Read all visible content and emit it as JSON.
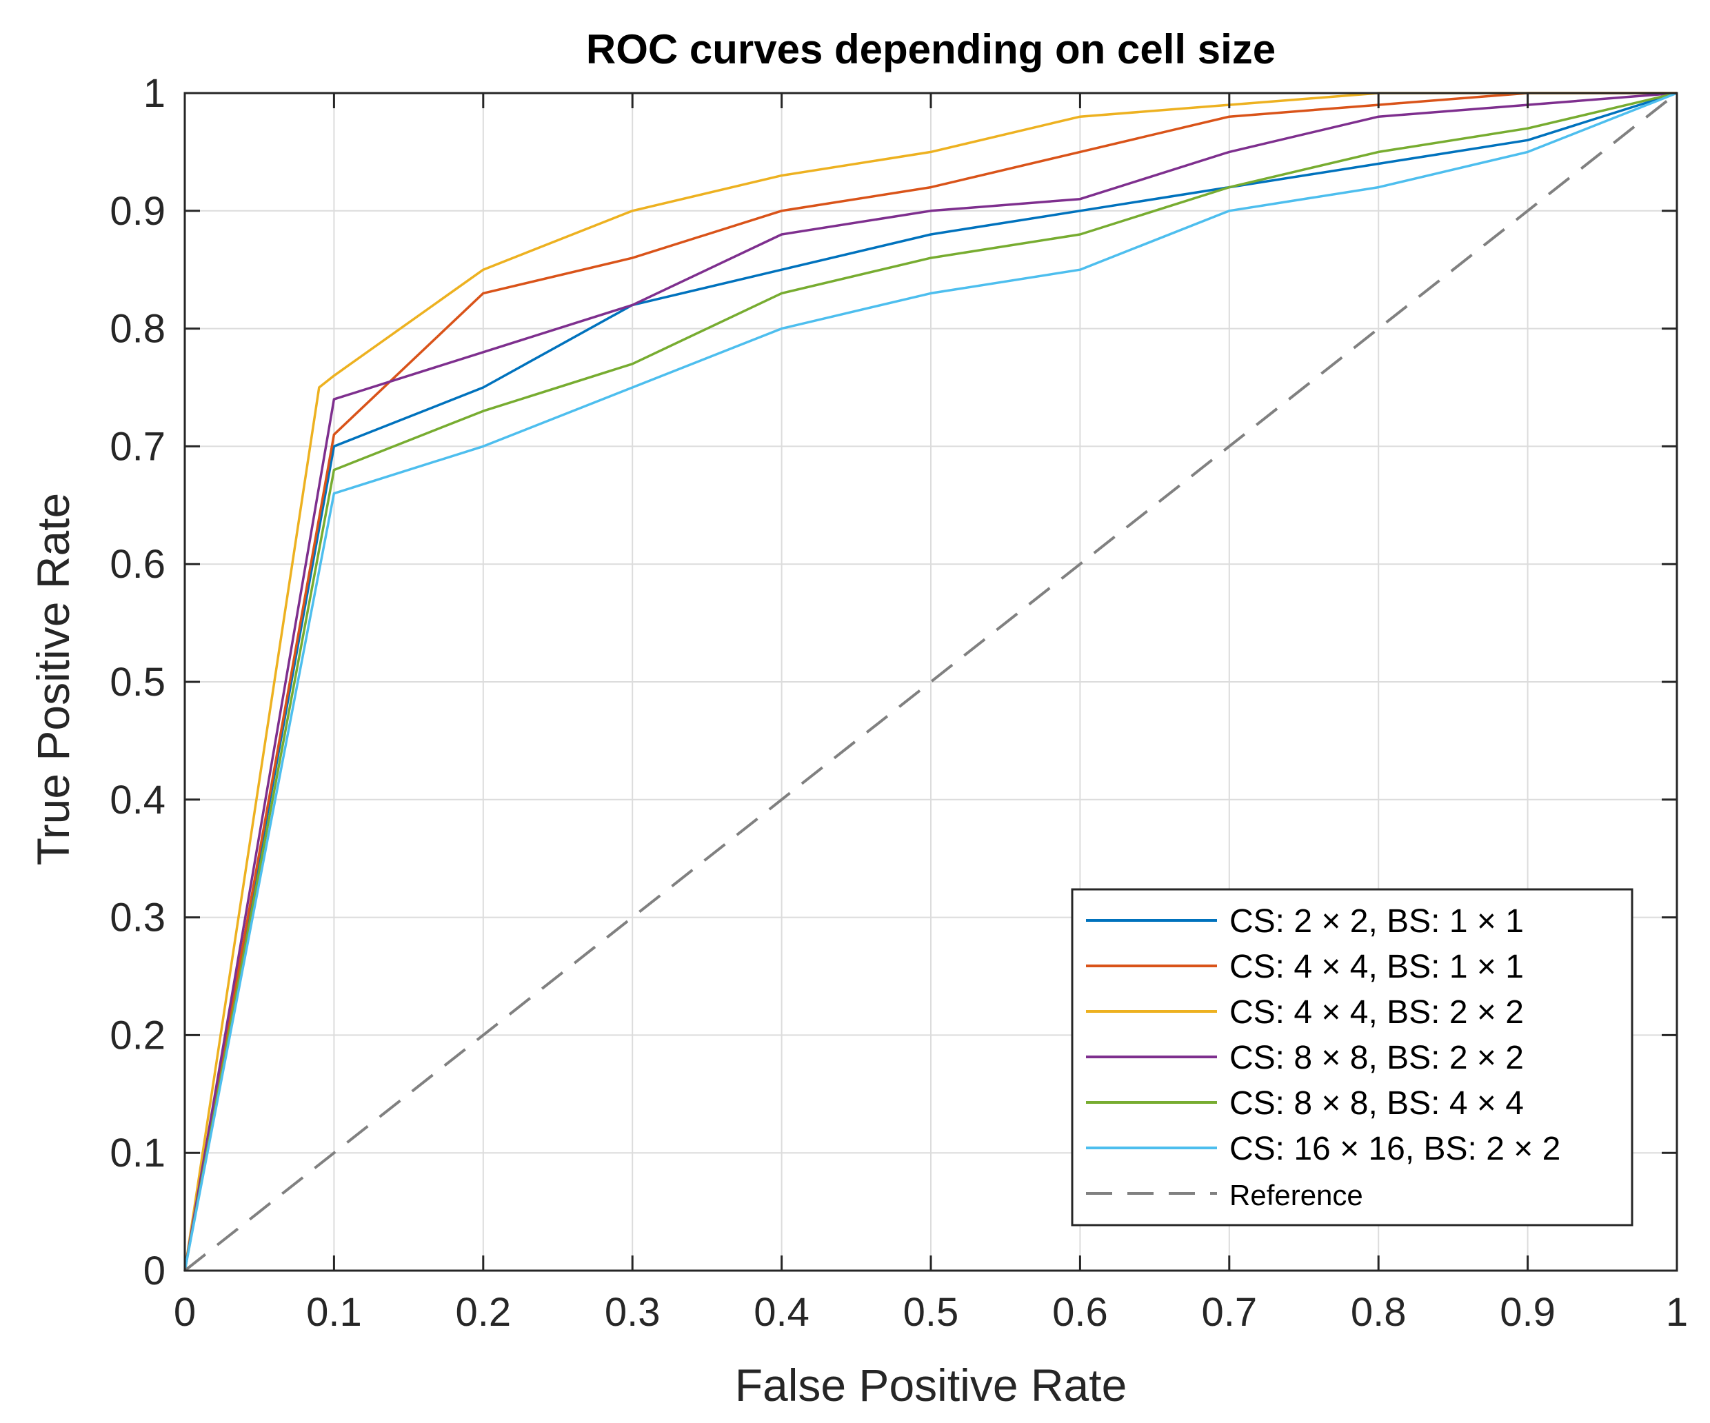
{
  "chart_data": {
    "type": "line",
    "title": "ROC curves depending on cell size",
    "xlabel": "False Positive Rate",
    "ylabel": "True Positive Rate",
    "xlim": [
      0,
      1
    ],
    "ylim": [
      0,
      1
    ],
    "grid": true,
    "legend_position": "bottom-right",
    "x_ticks": [
      0,
      0.1,
      0.2,
      0.3,
      0.4,
      0.5,
      0.6,
      0.7,
      0.8,
      0.9,
      1
    ],
    "x_tick_labels": [
      "0",
      "0.1",
      "0.2",
      "0.3",
      "0.4",
      "0.5",
      "0.6",
      "0.7",
      "0.8",
      "0.9",
      "1"
    ],
    "y_ticks": [
      0,
      0.1,
      0.2,
      0.3,
      0.4,
      0.5,
      0.6,
      0.7,
      0.8,
      0.9,
      1
    ],
    "y_tick_labels": [
      "0",
      "0.1",
      "0.2",
      "0.3",
      "0.4",
      "0.5",
      "0.6",
      "0.7",
      "0.8",
      "0.9",
      "1"
    ],
    "series": [
      {
        "name": "CS: 2 × 2, BS: 1 × 1",
        "color": "#0072BD",
        "x": [
          0,
          0.1,
          0.2,
          0.3,
          0.4,
          0.5,
          0.6,
          0.7,
          0.8,
          0.9,
          1
        ],
        "y": [
          0,
          0.7,
          0.75,
          0.82,
          0.85,
          0.88,
          0.9,
          0.92,
          0.94,
          0.96,
          1
        ]
      },
      {
        "name": "CS: 4 × 4, BS: 1 × 1",
        "color": "#D95319",
        "x": [
          0,
          0.1,
          0.2,
          0.3,
          0.4,
          0.5,
          0.6,
          0.7,
          0.8,
          0.9,
          1
        ],
        "y": [
          0,
          0.71,
          0.83,
          0.86,
          0.9,
          0.92,
          0.95,
          0.98,
          0.99,
          1.0,
          1
        ]
      },
      {
        "name": "CS: 4 × 4, BS: 2 × 2",
        "color": "#EDB120",
        "x": [
          0,
          0.09,
          0.1,
          0.2,
          0.3,
          0.4,
          0.5,
          0.6,
          0.7,
          0.8,
          0.9,
          1
        ],
        "y": [
          0,
          0.75,
          0.76,
          0.85,
          0.9,
          0.93,
          0.95,
          0.98,
          0.99,
          1.0,
          1.0,
          1
        ]
      },
      {
        "name": "CS: 8 × 8, BS: 2 × 2",
        "color": "#7E2F8E",
        "x": [
          0,
          0.1,
          0.2,
          0.3,
          0.4,
          0.5,
          0.6,
          0.7,
          0.8,
          0.9,
          1
        ],
        "y": [
          0,
          0.74,
          0.78,
          0.82,
          0.88,
          0.9,
          0.91,
          0.95,
          0.98,
          0.99,
          1
        ]
      },
      {
        "name": "CS: 8 × 8, BS: 4 × 4",
        "color": "#77AC30",
        "x": [
          0,
          0.1,
          0.2,
          0.3,
          0.4,
          0.5,
          0.6,
          0.7,
          0.8,
          0.9,
          1
        ],
        "y": [
          0,
          0.68,
          0.73,
          0.77,
          0.83,
          0.86,
          0.88,
          0.92,
          0.95,
          0.97,
          1
        ]
      },
      {
        "name": "CS: 16 × 16, BS: 2 × 2",
        "color": "#4DBEEE",
        "x": [
          0,
          0.1,
          0.2,
          0.3,
          0.4,
          0.5,
          0.6,
          0.7,
          0.8,
          0.9,
          1
        ],
        "y": [
          0,
          0.66,
          0.7,
          0.75,
          0.8,
          0.83,
          0.85,
          0.9,
          0.92,
          0.95,
          1
        ]
      },
      {
        "name": "Reference",
        "color": "#808080",
        "dashed": true,
        "x": [
          0,
          1
        ],
        "y": [
          0,
          1
        ]
      }
    ]
  }
}
